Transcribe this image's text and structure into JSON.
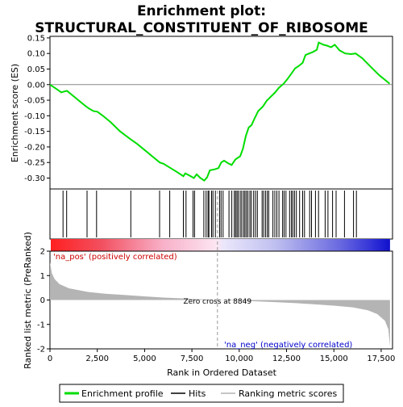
{
  "chart_data": {
    "type": "line",
    "title_line1": "Enrichment plot:",
    "title_line2": "STRUCTURAL_CONSTITUENT_OF_RIBOSOME",
    "es_panel": {
      "ylabel": "Enrichment score (ES)",
      "ylim": [
        -0.335,
        0.155
      ],
      "yticks": [
        0.15,
        0.1,
        0.05,
        0.0,
        -0.05,
        -0.1,
        -0.15,
        -0.2,
        -0.25,
        -0.3
      ],
      "ytick_labels": [
        "0.15",
        "0.10",
        "0.05",
        "0.00",
        "-0.05",
        "-0.10",
        "-0.15",
        "-0.20",
        "-0.25",
        "-0.30"
      ],
      "series_color": "#00dd00",
      "points": [
        [
          0,
          0.0
        ],
        [
          300,
          -0.012
        ],
        [
          600,
          -0.025
        ],
        [
          750,
          -0.022
        ],
        [
          900,
          -0.02
        ],
        [
          1400,
          -0.045
        ],
        [
          1700,
          -0.06
        ],
        [
          1950,
          -0.072
        ],
        [
          2100,
          -0.078
        ],
        [
          2300,
          -0.085
        ],
        [
          2500,
          -0.087
        ],
        [
          2800,
          -0.1
        ],
        [
          3200,
          -0.12
        ],
        [
          3700,
          -0.15
        ],
        [
          4250,
          -0.175
        ],
        [
          4600,
          -0.19
        ],
        [
          5100,
          -0.215
        ],
        [
          5500,
          -0.235
        ],
        [
          5800,
          -0.25
        ],
        [
          6000,
          -0.254
        ],
        [
          6350,
          -0.267
        ],
        [
          6700,
          -0.28
        ],
        [
          7050,
          -0.294
        ],
        [
          7150,
          -0.285
        ],
        [
          7400,
          -0.293
        ],
        [
          7600,
          -0.3
        ],
        [
          7750,
          -0.288
        ],
        [
          7950,
          -0.3
        ],
        [
          8150,
          -0.308
        ],
        [
          8300,
          -0.298
        ],
        [
          8450,
          -0.275
        ],
        [
          8700,
          -0.272
        ],
        [
          8900,
          -0.268
        ],
        [
          9050,
          -0.25
        ],
        [
          9200,
          -0.244
        ],
        [
          9400,
          -0.252
        ],
        [
          9600,
          -0.258
        ],
        [
          9800,
          -0.24
        ],
        [
          10050,
          -0.23
        ],
        [
          10200,
          -0.205
        ],
        [
          10350,
          -0.165
        ],
        [
          10500,
          -0.138
        ],
        [
          10650,
          -0.13
        ],
        [
          10800,
          -0.11
        ],
        [
          11000,
          -0.085
        ],
        [
          11250,
          -0.07
        ],
        [
          11450,
          -0.052
        ],
        [
          11650,
          -0.04
        ],
        [
          11900,
          -0.025
        ],
        [
          12100,
          -0.01
        ],
        [
          12350,
          0.003
        ],
        [
          12550,
          0.018
        ],
        [
          12750,
          0.035
        ],
        [
          12950,
          0.052
        ],
        [
          13150,
          0.06
        ],
        [
          13350,
          0.07
        ],
        [
          13500,
          0.095
        ],
        [
          13700,
          0.1
        ],
        [
          13900,
          0.105
        ],
        [
          14100,
          0.112
        ],
        [
          14200,
          0.135
        ],
        [
          14450,
          0.128
        ],
        [
          14650,
          0.125
        ],
        [
          14850,
          0.12
        ],
        [
          15050,
          0.128
        ],
        [
          15300,
          0.11
        ],
        [
          15600,
          0.1
        ],
        [
          15900,
          0.098
        ],
        [
          16150,
          0.1
        ],
        [
          16500,
          0.085
        ],
        [
          16900,
          0.06
        ],
        [
          17400,
          0.03
        ],
        [
          17950,
          0.003
        ]
      ]
    },
    "hits": [
      690,
      880,
      1960,
      2460,
      4270,
      5790,
      6330,
      7050,
      7190,
      7560,
      7640,
      8130,
      8250,
      8350,
      8400,
      8540,
      8610,
      8740,
      8960,
      9040,
      9150,
      9460,
      9610,
      9740,
      9810,
      9880,
      9950,
      10050,
      10130,
      10230,
      10300,
      10380,
      10460,
      10560,
      10640,
      10760,
      10860,
      10960,
      11210,
      11290,
      11390,
      11480,
      11560,
      11780,
      11880,
      11990,
      12100,
      12290,
      12370,
      12470,
      12660,
      12760,
      12830,
      12920,
      13020,
      13190,
      13350,
      13450,
      13720,
      13820,
      14030,
      14190,
      14540,
      14690,
      14930,
      15120,
      15560,
      16040,
      16190
    ],
    "ranked_metric": {
      "ylabel": "Ranked list metric (PreRanked)",
      "ylim": [
        -2.0,
        2.0
      ],
      "yticks": [
        2,
        1,
        0,
        -1,
        -2
      ],
      "ytick_labels": [
        "2",
        "1",
        "0",
        "-1",
        "-2"
      ],
      "fill_color": "#b4b4b4",
      "points": [
        [
          0,
          1.55
        ],
        [
          100,
          1.1
        ],
        [
          250,
          0.85
        ],
        [
          500,
          0.65
        ],
        [
          1000,
          0.48
        ],
        [
          2000,
          0.33
        ],
        [
          3000,
          0.25
        ],
        [
          4000,
          0.2
        ],
        [
          5000,
          0.15
        ],
        [
          6000,
          0.1
        ],
        [
          7000,
          0.065
        ],
        [
          8000,
          0.03
        ],
        [
          8849,
          0.0
        ],
        [
          10000,
          -0.03
        ],
        [
          11000,
          -0.06
        ],
        [
          12000,
          -0.09
        ],
        [
          13000,
          -0.13
        ],
        [
          14000,
          -0.18
        ],
        [
          15000,
          -0.23
        ],
        [
          16000,
          -0.3
        ],
        [
          16800,
          -0.42
        ],
        [
          17300,
          -0.58
        ],
        [
          17700,
          -0.85
        ],
        [
          17880,
          -1.2
        ],
        [
          17970,
          -1.9
        ]
      ]
    },
    "xlabel": "Rank in Ordered Dataset",
    "xlim": [
      0,
      18100
    ],
    "xticks": [
      0,
      2500,
      5000,
      7500,
      10000,
      12500,
      15000,
      17500
    ],
    "xtick_labels": [
      "0",
      "2,500",
      "5,000",
      "7,500",
      "10,000",
      "12,500",
      "15,000",
      "17,500"
    ],
    "n_genes": 17970,
    "zero_cross": 8849,
    "zero_cross_label": "Zero cross at 8849",
    "pos_label": "'na_pos' (positively correlated)",
    "neg_label": "'na_neg' (negatively correlated)",
    "pos_label_color": "#cc0000",
    "neg_label_color": "#0000cc",
    "legend": [
      {
        "label": "Enrichment profile",
        "color": "#00dd00"
      },
      {
        "label": "Hits",
        "color": "#000000"
      },
      {
        "label": "Ranking metric scores",
        "color": "#b4b4b4"
      }
    ]
  }
}
